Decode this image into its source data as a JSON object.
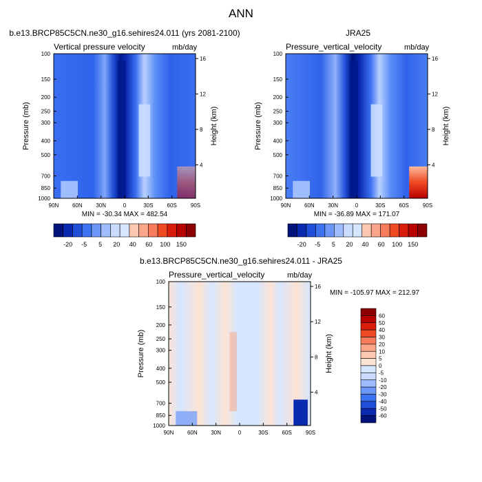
{
  "page_title": "ANN",
  "colors": {
    "blue_dark": "#00137a",
    "blue_light": "#d6e6ff",
    "red_dark": "#8b0000",
    "cream": "#fde3d3"
  },
  "chart_data": [
    {
      "type": "heatmap",
      "panel_title": "b.e13.BRCP85C5CN.ne30_g16.sehires24.011 (yrs 2081-2100)",
      "left_label": "Vertical pressure velocity",
      "right_label": "mb/day",
      "xlabel": "",
      "ylabel": "Pressure (mb)",
      "y2label": "Height (km)",
      "x_ticks": [
        "90N",
        "60N",
        "30N",
        "0",
        "30S",
        "60S",
        "90S"
      ],
      "y_ticks": [
        100,
        150,
        200,
        250,
        300,
        400,
        500,
        700,
        850,
        1000
      ],
      "y2_ticks": [
        16,
        12,
        8,
        4
      ],
      "ylim": [
        1000,
        100
      ],
      "y_scale": "log",
      "min_max": "MIN = -30.34   MAX = 482.54",
      "legend_levels": [
        "-20",
        "-5",
        "5",
        "20",
        "40",
        "60",
        "100",
        "150"
      ]
    },
    {
      "type": "heatmap",
      "panel_title": "JRA25",
      "left_label": "Pressure_vertical_velocity",
      "right_label": "mb/day",
      "xlabel": "",
      "ylabel": "Pressure (mb)",
      "y2label": "Height (km)",
      "x_ticks": [
        "90N",
        "60N",
        "30N",
        "0",
        "30S",
        "60S",
        "90S"
      ],
      "y_ticks": [
        100,
        150,
        200,
        250,
        300,
        400,
        500,
        700,
        850,
        1000
      ],
      "y2_ticks": [
        16,
        12,
        8,
        4
      ],
      "ylim": [
        1000,
        100
      ],
      "y_scale": "log",
      "min_max": "MIN = -36.89   MAX = 171.07",
      "legend_levels": [
        "-20",
        "-5",
        "5",
        "20",
        "40",
        "60",
        "100",
        "150"
      ]
    },
    {
      "type": "heatmap",
      "panel_title": "b.e13.BRCP85C5CN.ne30_g16.sehires24.011 - JRA25",
      "left_label": "Pressure_vertical_velocity",
      "right_label": "mb/day",
      "xlabel": "",
      "ylabel": "Pressure (mb)",
      "y2label": "Height (km)",
      "x_ticks": [
        "90N",
        "60N",
        "30N",
        "0",
        "30S",
        "60S",
        "90S"
      ],
      "y_ticks": [
        100,
        150,
        200,
        250,
        300,
        400,
        500,
        700,
        850,
        1000
      ],
      "y2_ticks": [
        16,
        12,
        8,
        4
      ],
      "ylim": [
        1000,
        100
      ],
      "y_scale": "log",
      "min_max": "MIN = -105.97   MAX = 212.97",
      "legend_levels": [
        "60",
        "50",
        "40",
        "30",
        "20",
        "10",
        "5",
        "0",
        "-5",
        "-10",
        "-20",
        "-30",
        "-40",
        "-50",
        "-60"
      ]
    }
  ]
}
